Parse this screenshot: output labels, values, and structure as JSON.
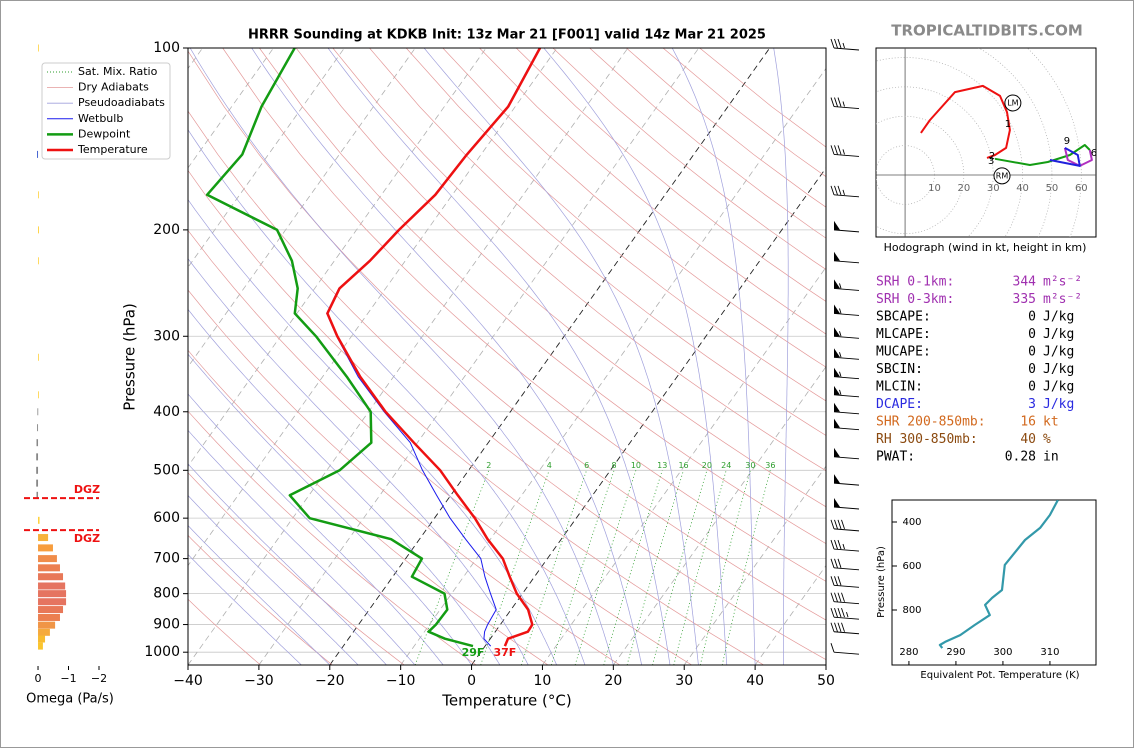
{
  "site": "TROPICALTIDBITS.COM",
  "chart_data": [
    {
      "type": "skewt",
      "title": "HRRR Sounding at KDKB Init: 13z Mar 21 [F001] valid 14z Mar 21 2025",
      "x_label": "Temperature (°C)",
      "y_label": "Pressure (hPa)",
      "xlim": [
        -40,
        50
      ],
      "xticks": [
        {
          "value": -40,
          "label": "−40"
        },
        {
          "value": -30,
          "label": "−30"
        },
        {
          "value": -20,
          "label": "−20"
        },
        {
          "value": -10,
          "label": "−10"
        },
        0,
        10,
        20,
        30,
        40,
        50
      ],
      "ylim": [
        1050,
        100
      ],
      "log_y": true,
      "yticks": [
        100,
        200,
        300,
        400,
        500,
        600,
        700,
        800,
        900,
        1000
      ],
      "highlighted_isotherms": [
        -20,
        0
      ],
      "pressure": [
        977,
        950,
        925,
        900,
        850,
        800,
        750,
        700,
        650,
        600,
        550,
        500,
        450,
        400,
        350,
        300,
        275,
        250,
        225,
        200,
        175,
        150,
        125,
        100
      ],
      "reference_lines": [
        {
          "name": "Sat. Mix. Ratio",
          "color": "#2e9e2e"
        },
        {
          "name": "Dry Adiabats",
          "color": "#e49a9a"
        },
        {
          "name": "Pseudoadiabats",
          "color": "#a0a0dc"
        }
      ],
      "series": [
        {
          "name": "Wetbulb",
          "color": "#1a1aee",
          "line_width": 1,
          "values": [
            0.8,
            -0.9,
            -1.5,
            -1.8,
            -2.1,
            -4.5,
            -7,
            -9.4,
            -13.5,
            -17.8,
            -22,
            -26.5,
            -31,
            -37.8,
            -45,
            -52.1,
            -55.8,
            -56.6,
            -55.1,
            -54.1,
            -52.5,
            -52.1,
            -51.1,
            -52.5
          ]
        },
        {
          "name": "Dewpoint",
          "color": "#139c13",
          "line_width": 2.5,
          "surface_label": "29F",
          "values": [
            -1.7,
            -6.4,
            -9.4,
            -9.1,
            -9,
            -11,
            -17.3,
            -17.7,
            -24,
            -37.6,
            -42.7,
            -38.2,
            -36.5,
            -39.7,
            -46.6,
            -55,
            -60.3,
            -62.4,
            -66,
            -71.2,
            -84.6,
            -83.7,
            -85.8,
            -87
          ]
        },
        {
          "name": "Temperature",
          "color": "#ee1111",
          "line_width": 2.5,
          "surface_label": "37F",
          "values": [
            2.8,
            2.5,
            4.6,
            4.5,
            2.4,
            -0.8,
            -3.5,
            -6.3,
            -10.4,
            -14.3,
            -19,
            -24,
            -30.5,
            -37.6,
            -44.7,
            -52,
            -55.7,
            -56.5,
            -55,
            -54,
            -52.4,
            -52,
            -51,
            -52.4
          ]
        }
      ],
      "mixing_ratios": [
        2,
        4,
        6,
        8,
        10,
        13,
        16,
        20,
        24,
        30,
        36
      ],
      "winds": {
        "pressure": [
          100,
          125,
          150,
          175,
          200,
          225,
          250,
          275,
          300,
          325,
          350,
          375,
          400,
          425,
          475,
          525,
          575,
          625,
          675,
          725,
          775,
          825,
          875,
          925,
          1000
        ],
        "speed": [
          35,
          35,
          35,
          35,
          50,
          50,
          55,
          55,
          55,
          55,
          55,
          55,
          50,
          50,
          50,
          50,
          50,
          40,
          35,
          30,
          30,
          40,
          45,
          40,
          10
        ]
      }
    },
    {
      "type": "hbar",
      "x_label": "Omega (Pa/s)",
      "xlim": [
        0.46,
        -2
      ],
      "xticks": [
        0,
        {
          "value": -1,
          "label": "−1"
        },
        {
          "value": -2,
          "label": "−2"
        }
      ],
      "ylim": [
        1050,
        100
      ],
      "log_y": true,
      "pressure": [
        100,
        150,
        175,
        200,
        225,
        325,
        375,
        400,
        425,
        450,
        475,
        500,
        525,
        550,
        605,
        646,
        672,
        700,
        725,
        750,
        777,
        800,
        825,
        850,
        876,
        902,
        927,
        951,
        977
      ],
      "values": [
        -0.02,
        0.03,
        -0.02,
        -0.03,
        -0.02,
        -0.02,
        -0.02,
        0.02,
        0.03,
        0.05,
        0.06,
        0.06,
        0.06,
        0.05,
        -0.05,
        -0.33,
        -0.49,
        -0.62,
        -0.72,
        -0.82,
        -0.89,
        -0.92,
        -0.92,
        -0.82,
        -0.72,
        -0.56,
        -0.39,
        -0.23,
        -0.16
      ],
      "colors": [
        "#ffd23c",
        "#3355cc",
        "#ffd23c",
        "#ffd23c",
        "#ffd23c",
        "#ffd23c",
        "#ffd23c",
        "#888888",
        "#888888",
        "#888888",
        "#888888",
        "#888888",
        "#888888",
        "#888888",
        "#ffd23c",
        "#f7b23b",
        "#f79d3d",
        "#f08c4a",
        "#ec7f50",
        "#e87858",
        "#e57460",
        "#e57460",
        "#e57460",
        "#e87858",
        "#ec7f50",
        "#f09546",
        "#f5aa3d",
        "#f8bb30",
        "#fac52e"
      ],
      "dgz": {
        "pressure": [
          556,
          628
        ],
        "labels": [
          "DGZ",
          "DGZ"
        ],
        "color": "#ee1111"
      }
    },
    {
      "type": "hodograph",
      "caption": "Hodograph (wind in kt, height in km)",
      "xlim": [
        -9.9,
        65
      ],
      "ylim": [
        -21.1,
        43.2
      ],
      "xticks": [
        10,
        20,
        30,
        40,
        50,
        60
      ],
      "series": [
        {
          "color": "#ee1111",
          "u": [
            5.4,
            8.5,
            17,
            26.5,
            32.3,
            34.7,
            35.7,
            34.4,
            30.6,
            27.9
          ],
          "v": [
            14.3,
            18.7,
            28.2,
            30.3,
            26.9,
            21.4,
            15.3,
            9.2,
            6.8,
            5.8
          ]
        },
        {
          "color": "#139c13",
          "u": [
            30.6,
            42.5,
            48.6,
            56.1,
            61.2,
            62.9
          ],
          "v": [
            5.5,
            3.4,
            4.4,
            6.8,
            10.2,
            8.5
          ]
        },
        {
          "color": "#b030c0",
          "u": [
            62.9,
            63.6,
            59.5,
            55.4,
            54.4
          ],
          "v": [
            8.5,
            5.1,
            3.1,
            5.1,
            9.2
          ]
        },
        {
          "color": "#2020dd",
          "u": [
            54.4,
            58.8,
            59.5,
            49.3
          ],
          "v": [
            9.2,
            6.8,
            3.1,
            5.1
          ]
        }
      ],
      "height_labels": [
        {
          "label": "1",
          "u": 35,
          "v": 17.3
        },
        {
          "label": "2",
          "u": 29.6,
          "v": 6.5
        },
        {
          "label": "3",
          "u": 29.3,
          "v": 4.8
        },
        {
          "label": "6",
          "u": 64.3,
          "v": 7.5
        },
        {
          "label": "9",
          "u": 55.1,
          "v": 11.6
        }
      ],
      "motion_labels": [
        {
          "label": "LM",
          "u": 36.7,
          "v": 24.5
        },
        {
          "label": "RM",
          "u": 33,
          "v": -0.3
        }
      ]
    },
    {
      "type": "line",
      "x_label": "Equivalent Pot. Temperature (K)",
      "y_label": "Pressure (hPa)",
      "xlim": [
        276.4,
        319.8
      ],
      "xticks": [
        280,
        290,
        300,
        310
      ],
      "ylim": [
        1050,
        300
      ],
      "yticks": [
        400,
        600,
        800
      ],
      "color": "#3399aa",
      "values": [
        311.7,
        310,
        307.9,
        304.7,
        300.4,
        299.8,
        297.7,
        296.8,
        296.2,
        297.2,
        294,
        290.9,
        287.7,
        286.6,
        287.1
      ],
      "pressure": [
        300,
        368,
        427,
        482,
        595,
        709,
        745,
        764,
        777,
        823,
        868,
        914,
        945,
        959,
        973
      ]
    }
  ],
  "stats": {
    "rows": [
      {
        "label": "SRH 0-1km:",
        "value": 344,
        "unit": "m²s⁻²",
        "color": "#a030b0"
      },
      {
        "label": "SRH 0-3km:",
        "value": 335,
        "unit": "m²s⁻²",
        "color": "#a030b0"
      },
      {
        "label": "SBCAPE:",
        "value": 0,
        "unit": "J/kg",
        "color": "#000000"
      },
      {
        "label": "MLCAPE:",
        "value": 0,
        "unit": "J/kg",
        "color": "#000000"
      },
      {
        "label": "MUCAPE:",
        "value": 0,
        "unit": "J/kg",
        "color": "#000000"
      },
      {
        "label": "SBCIN:",
        "value": 0,
        "unit": "J/kg",
        "color": "#000000"
      },
      {
        "label": "MLCIN:",
        "value": 0,
        "unit": "J/kg",
        "color": "#000000"
      },
      {
        "label": "DCAPE:",
        "value": 3,
        "unit": "J/kg",
        "color": "#2a2ae0"
      },
      {
        "label": "SHR 200-850mb:",
        "value": 16,
        "unit": "kt",
        "color": "#d2691e"
      },
      {
        "label": "RH 300-850mb:",
        "value": 40,
        "unit": "%",
        "color": "#8b4a10"
      },
      {
        "label": "PWAT:",
        "value": 0.28,
        "unit": "in",
        "color": "#000000"
      }
    ]
  }
}
